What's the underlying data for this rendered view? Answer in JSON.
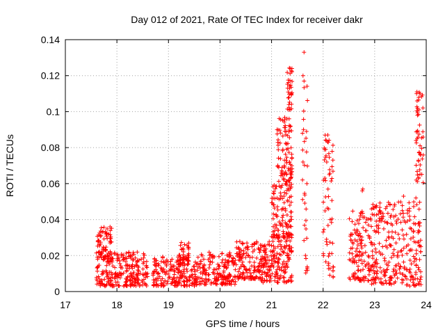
{
  "chart_data": {
    "type": "scatter",
    "title": "Day 012 of 2021, Rate Of TEC Index for receiver dakr",
    "xlabel": "GPS time / hours",
    "ylabel": "ROTI / TECUs",
    "xlim": [
      17,
      24
    ],
    "ylim": [
      0,
      0.14
    ],
    "xticks": [
      "17",
      "18",
      "19",
      "20",
      "21",
      "22",
      "23",
      "24"
    ],
    "yticks": [
      "0",
      "0.02",
      "0.04",
      "0.06",
      "0.08",
      "0.1",
      "0.12",
      "0.14"
    ],
    "grid": true,
    "marker": "+",
    "series_color": "#ff0000",
    "clusters": [
      {
        "x": [
          17.6,
          18.6
        ],
        "y": [
          0.003,
          0.022
        ]
      },
      {
        "x": [
          17.6,
          17.9
        ],
        "y": [
          0.018,
          0.036
        ]
      },
      {
        "x": [
          18.7,
          19.6
        ],
        "y": [
          0.003,
          0.02
        ]
      },
      {
        "x": [
          19.2,
          19.4
        ],
        "y": [
          0.015,
          0.028
        ]
      },
      {
        "x": [
          19.6,
          20.3
        ],
        "y": [
          0.004,
          0.022
        ]
      },
      {
        "x": [
          20.3,
          20.8
        ],
        "y": [
          0.007,
          0.028
        ]
      },
      {
        "x": [
          20.8,
          21.4
        ],
        "y": [
          0.005,
          0.03
        ]
      },
      {
        "x": [
          21.0,
          21.4
        ],
        "y": [
          0.03,
          0.06
        ]
      },
      {
        "x": [
          21.1,
          21.4
        ],
        "y": [
          0.06,
          0.097
        ]
      },
      {
        "x": [
          21.3,
          21.4
        ],
        "y": [
          0.1,
          0.125
        ]
      },
      {
        "x": [
          21.6,
          21.7
        ],
        "y": [
          0.01,
          0.12
        ]
      },
      {
        "x": [
          22.0,
          22.2
        ],
        "y": [
          0.008,
          0.088
        ]
      },
      {
        "x": [
          22.5,
          22.9
        ],
        "y": [
          0.006,
          0.045
        ]
      },
      {
        "x": [
          22.9,
          23.6
        ],
        "y": [
          0.004,
          0.05
        ]
      },
      {
        "x": [
          23.6,
          23.9
        ],
        "y": [
          0.003,
          0.05
        ]
      },
      {
        "x": [
          23.8,
          23.95
        ],
        "y": [
          0.06,
          0.112
        ]
      }
    ],
    "points": [
      [
        21.63,
        0.133
      ],
      [
        21.36,
        0.124
      ],
      [
        21.35,
        0.113
      ],
      [
        21.63,
        0.117
      ],
      [
        21.61,
        0.12
      ],
      [
        21.38,
        0.11
      ],
      [
        23.82,
        0.111
      ],
      [
        23.86,
        0.101
      ],
      [
        23.83,
        0.098
      ],
      [
        23.88,
        0.081
      ],
      [
        23.85,
        0.073
      ],
      [
        21.62,
        0.09
      ],
      [
        21.6,
        0.088
      ],
      [
        21.61,
        0.072
      ],
      [
        21.6,
        0.062
      ],
      [
        22.09,
        0.087
      ],
      [
        22.1,
        0.083
      ],
      [
        22.05,
        0.079
      ],
      [
        22.07,
        0.072
      ],
      [
        22.12,
        0.065
      ],
      [
        21.3,
        0.096
      ],
      [
        21.34,
        0.096
      ],
      [
        21.28,
        0.089
      ],
      [
        21.22,
        0.079
      ],
      [
        21.25,
        0.073
      ],
      [
        21.29,
        0.065
      ],
      [
        22.77,
        0.057
      ],
      [
        23.85,
        0.063
      ],
      [
        23.8,
        0.052
      ],
      [
        23.56,
        0.053
      ],
      [
        22.76,
        0.056
      ]
    ]
  }
}
